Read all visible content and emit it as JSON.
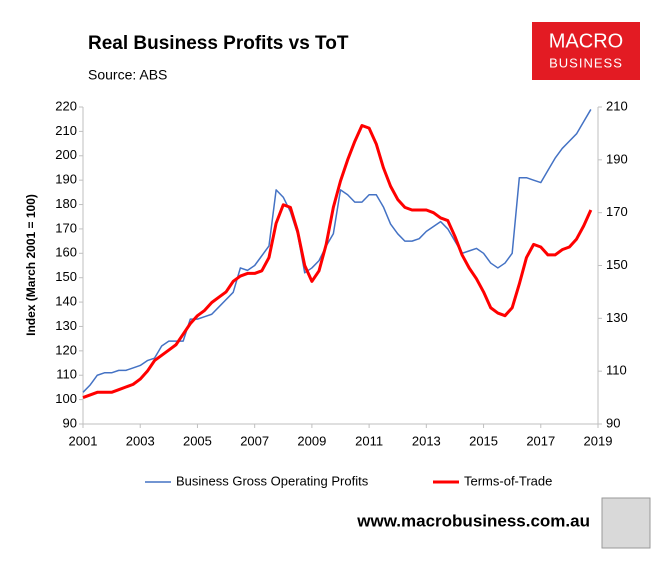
{
  "chart_data": {
    "type": "line",
    "title": "Real Business Profits vs ToT",
    "subtitle": "Source: ABS",
    "ylabel": "Index (March 2001 = 100)",
    "logo": [
      "MACRO",
      "BUSINESS"
    ],
    "footer": "www.macrobusiness.com.au",
    "x": [
      2001,
      2001.25,
      2001.5,
      2001.75,
      2002,
      2002.25,
      2002.5,
      2002.75,
      2003,
      2003.25,
      2003.5,
      2003.75,
      2004,
      2004.25,
      2004.5,
      2004.75,
      2005,
      2005.25,
      2005.5,
      2005.75,
      2006,
      2006.25,
      2006.5,
      2006.75,
      2007,
      2007.25,
      2007.5,
      2007.75,
      2008,
      2008.25,
      2008.5,
      2008.75,
      2009,
      2009.25,
      2009.5,
      2009.75,
      2010,
      2010.25,
      2010.5,
      2010.75,
      2011,
      2011.25,
      2011.5,
      2011.75,
      2012,
      2012.25,
      2012.5,
      2012.75,
      2013,
      2013.25,
      2013.5,
      2013.75,
      2014,
      2014.25,
      2014.5,
      2014.75,
      2015,
      2015.25,
      2015.5,
      2015.75,
      2016,
      2016.25,
      2016.5,
      2016.75,
      2017,
      2017.25,
      2017.5,
      2017.75,
      2018,
      2018.25,
      2018.5,
      2018.75
    ],
    "xlim": [
      2001,
      2019
    ],
    "xticks": [
      2001,
      2003,
      2005,
      2007,
      2009,
      2011,
      2013,
      2015,
      2017,
      2019
    ],
    "ylim": [
      90,
      220
    ],
    "yticks": [
      90,
      100,
      110,
      120,
      130,
      140,
      150,
      160,
      170,
      180,
      190,
      200,
      210,
      220
    ],
    "y2lim": [
      90,
      210
    ],
    "y2ticks": [
      90,
      110,
      130,
      150,
      170,
      190,
      210
    ],
    "legend": "bottom",
    "series": [
      {
        "name": "Business Gross Operating Profits",
        "color": "#4472c4",
        "width": 1.5,
        "values": [
          103,
          106,
          110,
          111,
          111,
          112,
          112,
          113,
          114,
          116,
          117,
          122,
          124,
          124,
          124,
          133,
          133,
          134,
          135,
          138,
          141,
          144,
          154,
          153,
          155,
          159,
          163,
          186,
          183,
          177,
          168,
          152,
          154,
          157,
          163,
          168,
          186,
          184,
          181,
          181,
          184,
          184,
          179,
          172,
          168,
          165,
          165,
          166,
          169,
          171,
          173,
          170,
          165,
          160,
          161,
          162,
          160,
          156,
          154,
          156,
          160,
          191,
          191,
          190,
          189,
          194,
          199,
          203,
          206,
          209,
          214,
          219
        ]
      },
      {
        "name": "Terms-of-Trade",
        "color": "#ff0000",
        "width": 3,
        "axis": "y2",
        "values": [
          100,
          101,
          102,
          102,
          102,
          103,
          104,
          105,
          107,
          110,
          114,
          116,
          118,
          120,
          124,
          128,
          131,
          133,
          136,
          138,
          140,
          144,
          146,
          147,
          147,
          148,
          153,
          166,
          173,
          172,
          163,
          150,
          144,
          148,
          158,
          172,
          182,
          190,
          197,
          203,
          202,
          196,
          187,
          180,
          175,
          172,
          171,
          171,
          171,
          170,
          168,
          167,
          161,
          154,
          149,
          145,
          140,
          134,
          132,
          131,
          134,
          143,
          153,
          158,
          157,
          154,
          154,
          156,
          157,
          160,
          165,
          171
        ]
      }
    ]
  }
}
